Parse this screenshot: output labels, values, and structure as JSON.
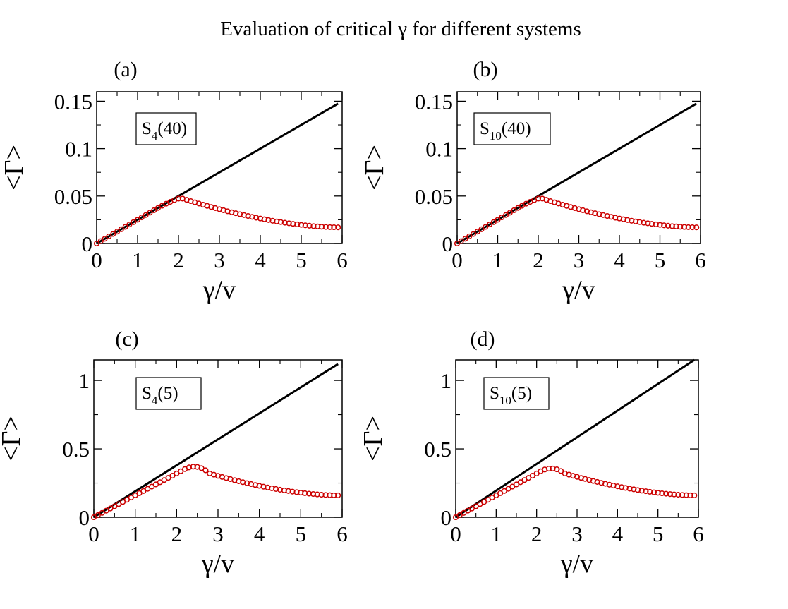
{
  "figure": {
    "title": "Evaluation of critical γ for different systems"
  },
  "style": {
    "line_color": "#000000",
    "marker_color": "#cc0000"
  },
  "chart_data": [
    {
      "type": "line",
      "panel_label": "(a)",
      "legend_main": "S",
      "legend_sub": "4",
      "legend_tail": "(40)",
      "legend_position": "top-left",
      "xlabel": "γ/v",
      "ylabel": "<Γ>",
      "xlim": [
        0,
        6
      ],
      "ylim": [
        0,
        0.16
      ],
      "x_ticks": [
        0,
        1,
        2,
        3,
        4,
        5,
        6
      ],
      "y_ticks": [
        0,
        0.05,
        0.1,
        0.15
      ],
      "y_tick_labels": [
        "0",
        "0.05",
        "0.1",
        "0.15"
      ],
      "line": {
        "x": [
          0,
          5.9
        ],
        "y": [
          0,
          0.1475
        ]
      },
      "markers": {
        "slope": 0.025,
        "peak_x": 2.05,
        "peak_y": 0.048,
        "end_y": 0.017,
        "x_start": 0,
        "x_end": 5.9,
        "step": 0.1,
        "decay": 0.8
      }
    },
    {
      "type": "line",
      "panel_label": "(b)",
      "legend_main": "S",
      "legend_sub": "10",
      "legend_tail": "(40)",
      "legend_position": "top-left",
      "xlabel": "γ/v",
      "ylabel": "<Γ>",
      "xlim": [
        0,
        6
      ],
      "ylim": [
        0,
        0.16
      ],
      "x_ticks": [
        0,
        1,
        2,
        3,
        4,
        5,
        6
      ],
      "y_ticks": [
        0,
        0.05,
        0.1,
        0.15
      ],
      "y_tick_labels": [
        "0",
        "0.05",
        "0.1",
        "0.15"
      ],
      "line": {
        "x": [
          0,
          5.9
        ],
        "y": [
          0,
          0.1475
        ]
      },
      "markers": {
        "slope": 0.025,
        "peak_x": 2.05,
        "peak_y": 0.048,
        "end_y": 0.017,
        "x_start": 0,
        "x_end": 5.9,
        "step": 0.1,
        "decay": 0.8
      }
    },
    {
      "type": "line",
      "panel_label": "(c)",
      "legend_main": "S",
      "legend_sub": "4",
      "legend_tail": "(5)",
      "legend_position": "top-left",
      "xlabel": "γ/v",
      "ylabel": "<Γ>",
      "xlim": [
        0,
        6
      ],
      "ylim": [
        0,
        1.15
      ],
      "x_ticks": [
        0,
        1,
        2,
        3,
        4,
        5,
        6
      ],
      "y_ticks": [
        0,
        0.5,
        1
      ],
      "y_tick_labels": [
        "0",
        "0.5",
        "1"
      ],
      "line": {
        "x": [
          0,
          5.9
        ],
        "y": [
          0,
          1.12
        ]
      },
      "markers": {
        "slope": 0.16,
        "peak_x": 2.8,
        "peak_y": 0.32,
        "end_y": 0.16,
        "x_start": 0,
        "x_end": 5.9,
        "step": 0.1,
        "decay": 1.0
      }
    },
    {
      "type": "line",
      "panel_label": "(d)",
      "legend_main": "S",
      "legend_sub": "10",
      "legend_tail": "(5)",
      "legend_position": "top-left",
      "xlabel": "γ/v",
      "ylabel": "<Γ>",
      "xlim": [
        0,
        6
      ],
      "ylim": [
        0,
        1.15
      ],
      "x_ticks": [
        0,
        1,
        2,
        3,
        4,
        5,
        6
      ],
      "y_ticks": [
        0,
        0.5,
        1
      ],
      "y_tick_labels": [
        "0",
        "0.5",
        "1"
      ],
      "line": {
        "x": [
          0,
          5.9
        ],
        "y": [
          0,
          1.15
        ]
      },
      "markers": {
        "slope": 0.16,
        "peak_x": 2.7,
        "peak_y": 0.32,
        "end_y": 0.16,
        "x_start": 0,
        "x_end": 5.9,
        "step": 0.1,
        "decay": 1.0
      }
    }
  ]
}
